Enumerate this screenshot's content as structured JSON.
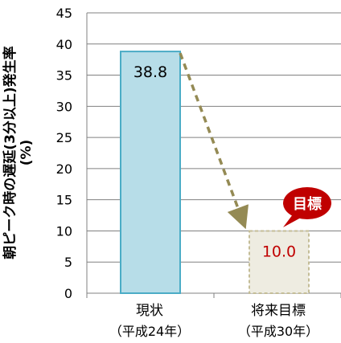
{
  "chart_data": {
    "type": "bar",
    "categories": [
      {
        "name": "現状",
        "sub": "（平成24年）"
      },
      {
        "name": "将来目標",
        "sub": "（平成30年）"
      }
    ],
    "values": [
      38.8,
      10.0
    ],
    "value_labels": [
      "38.8",
      "10.0"
    ],
    "ylabel": "朝ピーク時の遅延(3分以上)発生率",
    "yunit": "(%)",
    "ylim": [
      0,
      45
    ],
    "yticks": [
      0,
      5,
      10,
      15,
      20,
      25,
      30,
      35,
      40,
      45
    ],
    "grid": true,
    "badge": "目標",
    "colors": {
      "bar_current_fill": "#b7dde8",
      "bar_current_stroke": "#4bacc6",
      "bar_target_fill": "#eeece1",
      "bar_target_stroke": "#c4bd97",
      "target_value_text": "#c00000",
      "arrow": "#948a54",
      "badge_fill": "#c00000",
      "grid": "#808080"
    }
  }
}
